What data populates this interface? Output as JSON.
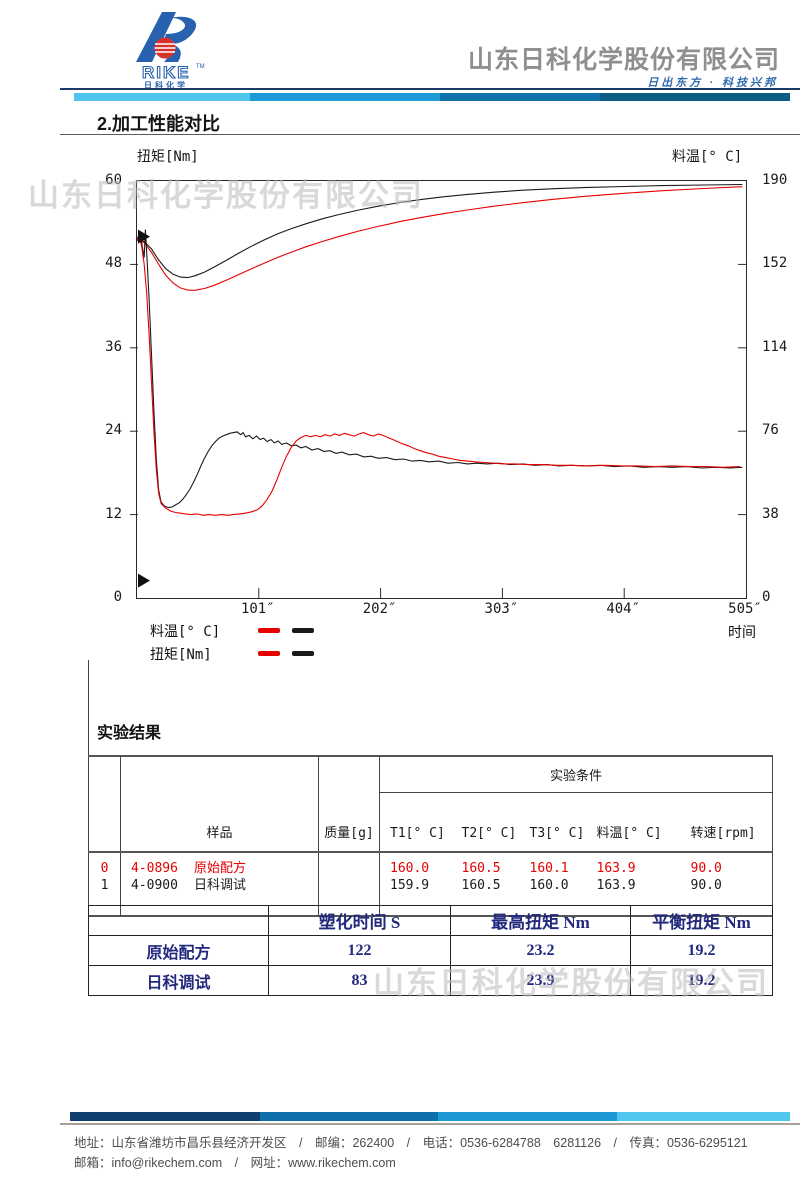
{
  "header": {
    "logo_brand": "RIKE",
    "logo_tm": "TM",
    "logo_brand_cn": "日 科 化 学",
    "company_name": "山东日科化学股份有限公司",
    "slogan": "日出东方 · 科技兴邦",
    "bar_colors": [
      "#4fc4ed",
      "#1e9ad6",
      "#0f72ab",
      "#0c5c85"
    ]
  },
  "section_title": "2.加工性能对比",
  "watermark_text": "山东日科化学股份有限公司",
  "chart_data": {
    "type": "line",
    "title": "",
    "x_axis": {
      "label": "时间",
      "min": 0,
      "max": 505,
      "ticks": [
        101,
        202,
        303,
        404,
        505
      ],
      "unit": "″"
    },
    "left_axis": {
      "label": "扭矩[Nm]",
      "min": 0,
      "max": 60,
      "ticks": [
        0,
        12,
        24,
        36,
        48,
        60
      ]
    },
    "right_axis": {
      "label": "料温[° C]",
      "min": 0,
      "max": 190,
      "ticks": [
        0,
        38,
        76,
        114,
        152,
        190
      ]
    },
    "grid": false,
    "legend_position": "bottom-left",
    "legend": [
      {
        "label": "料温[° C]",
        "colors": [
          "#e60000",
          "#1a1a1a"
        ]
      },
      {
        "label": "扭矩[Nm]",
        "colors": [
          "#e60000",
          "#1a1a1a"
        ]
      }
    ],
    "markers": [
      {
        "axis": "left",
        "value": 52
      },
      {
        "axis": "left",
        "value": 2.5
      }
    ],
    "series": [
      {
        "id": "temp-rike",
        "name": "料温 日科调试",
        "axis": "right",
        "color": "#1a1a1a",
        "points": [
          [
            0,
            163
          ],
          [
            6,
            162.5
          ],
          [
            12,
            159
          ],
          [
            18,
            154
          ],
          [
            24,
            150
          ],
          [
            30,
            147.5
          ],
          [
            36,
            146.2
          ],
          [
            42,
            146
          ],
          [
            48,
            146.8
          ],
          [
            56,
            148.5
          ],
          [
            64,
            150.8
          ],
          [
            74,
            153.8
          ],
          [
            84,
            157
          ],
          [
            94,
            160
          ],
          [
            104,
            162.8
          ],
          [
            116,
            165.8
          ],
          [
            128,
            168.3
          ],
          [
            140,
            170.5
          ],
          [
            154,
            172.8
          ],
          [
            168,
            174.8
          ],
          [
            184,
            176.8
          ],
          [
            200,
            178.5
          ],
          [
            218,
            180.2
          ],
          [
            236,
            181.6
          ],
          [
            254,
            182.8
          ],
          [
            274,
            183.9
          ],
          [
            296,
            184.9
          ],
          [
            320,
            185.8
          ],
          [
            346,
            186.5
          ],
          [
            374,
            187.1
          ],
          [
            404,
            187.5
          ],
          [
            436,
            187.9
          ],
          [
            470,
            188.2
          ],
          [
            502,
            188.4
          ]
        ]
      },
      {
        "id": "temp-original",
        "name": "料温 原始配方",
        "axis": "right",
        "color": "#e60000",
        "points": [
          [
            0,
            163
          ],
          [
            6,
            162
          ],
          [
            12,
            157.5
          ],
          [
            18,
            152
          ],
          [
            24,
            147
          ],
          [
            30,
            143.5
          ],
          [
            36,
            141.3
          ],
          [
            42,
            140.3
          ],
          [
            48,
            140.2
          ],
          [
            56,
            141
          ],
          [
            64,
            142.5
          ],
          [
            74,
            144.8
          ],
          [
            84,
            147.3
          ],
          [
            94,
            149.8
          ],
          [
            104,
            152.2
          ],
          [
            116,
            155
          ],
          [
            128,
            157.6
          ],
          [
            140,
            160
          ],
          [
            154,
            162.5
          ],
          [
            168,
            164.8
          ],
          [
            184,
            167.2
          ],
          [
            200,
            169.3
          ],
          [
            218,
            171.5
          ],
          [
            236,
            173.4
          ],
          [
            254,
            175.1
          ],
          [
            274,
            176.8
          ],
          [
            296,
            178.5
          ],
          [
            320,
            180.1
          ],
          [
            346,
            181.7
          ],
          [
            374,
            183.1
          ],
          [
            404,
            184.4
          ],
          [
            436,
            185.6
          ],
          [
            470,
            186.6
          ],
          [
            502,
            187.4
          ]
        ]
      },
      {
        "id": "torque-rike",
        "name": "扭矩 日科调试",
        "axis": "left",
        "color": "#1a1a1a",
        "points": [
          [
            0,
            51.5
          ],
          [
            2,
            52.5
          ],
          [
            4,
            51
          ],
          [
            6,
            49
          ],
          [
            7,
            53
          ],
          [
            8,
            50
          ],
          [
            10,
            43
          ],
          [
            12,
            35
          ],
          [
            14,
            27
          ],
          [
            16,
            20
          ],
          [
            18,
            15.5
          ],
          [
            20,
            13.8
          ],
          [
            23,
            13.2
          ],
          [
            26,
            13.0
          ],
          [
            29,
            13.1
          ],
          [
            32,
            13.4
          ],
          [
            35,
            13.7
          ],
          [
            38,
            14.2
          ],
          [
            41,
            14.9
          ],
          [
            44,
            15.7
          ],
          [
            47,
            16.7
          ],
          [
            50,
            17.8
          ],
          [
            53,
            19.0
          ],
          [
            56,
            20.1
          ],
          [
            59,
            21.1
          ],
          [
            62,
            21.9
          ],
          [
            65,
            22.5
          ],
          [
            68,
            23.0
          ],
          [
            71,
            23.3
          ],
          [
            74,
            23.5
          ],
          [
            77,
            23.7
          ],
          [
            80,
            23.8
          ],
          [
            83,
            23.9
          ],
          [
            86,
            23.5
          ],
          [
            88,
            23.8
          ],
          [
            90,
            23.2
          ],
          [
            93,
            23.4
          ],
          [
            96,
            22.9
          ],
          [
            99,
            23.3
          ],
          [
            102,
            22.8
          ],
          [
            105,
            23.0
          ],
          [
            108,
            22.5
          ],
          [
            111,
            22.8
          ],
          [
            114,
            22.3
          ],
          [
            117,
            22.6
          ],
          [
            120,
            22.1
          ],
          [
            124,
            22.3
          ],
          [
            128,
            21.9
          ],
          [
            132,
            22.0
          ],
          [
            136,
            21.6
          ],
          [
            140,
            21.8
          ],
          [
            145,
            21.3
          ],
          [
            150,
            21.5
          ],
          [
            155,
            21.1
          ],
          [
            160,
            21.2
          ],
          [
            165,
            20.8
          ],
          [
            170,
            21.0
          ],
          [
            176,
            20.6
          ],
          [
            182,
            20.7
          ],
          [
            188,
            20.3
          ],
          [
            194,
            20.4
          ],
          [
            200,
            20.1
          ],
          [
            207,
            20.2
          ],
          [
            214,
            19.9
          ],
          [
            221,
            20.0
          ],
          [
            228,
            19.7
          ],
          [
            235,
            19.8
          ],
          [
            242,
            19.6
          ],
          [
            250,
            19.7
          ],
          [
            258,
            19.4
          ],
          [
            266,
            19.5
          ],
          [
            274,
            19.3
          ],
          [
            282,
            19.4
          ],
          [
            290,
            19.3
          ],
          [
            300,
            19.4
          ],
          [
            310,
            19.2
          ],
          [
            320,
            19.3
          ],
          [
            330,
            19.1
          ],
          [
            340,
            19.2
          ],
          [
            350,
            19.0
          ],
          [
            360,
            19.1
          ],
          [
            372,
            19.0
          ],
          [
            384,
            19.1
          ],
          [
            396,
            18.9
          ],
          [
            408,
            19.0
          ],
          [
            420,
            18.8
          ],
          [
            432,
            18.9
          ],
          [
            444,
            18.8
          ],
          [
            456,
            18.9
          ],
          [
            468,
            18.7
          ],
          [
            480,
            18.8
          ],
          [
            492,
            18.7
          ],
          [
            502,
            18.8
          ]
        ]
      },
      {
        "id": "torque-original",
        "name": "扭矩 原始配方",
        "axis": "left",
        "color": "#e60000",
        "points": [
          [
            0,
            51.5
          ],
          [
            2,
            52
          ],
          [
            4,
            50.5
          ],
          [
            6,
            48
          ],
          [
            8,
            44
          ],
          [
            10,
            38
          ],
          [
            12,
            31
          ],
          [
            14,
            24
          ],
          [
            16,
            18.5
          ],
          [
            18,
            15
          ],
          [
            20,
            13.6
          ],
          [
            24,
            12.9
          ],
          [
            28,
            12.5
          ],
          [
            32,
            12.3
          ],
          [
            36,
            12.2
          ],
          [
            40,
            12.1
          ],
          [
            45,
            12.0
          ],
          [
            50,
            12.1
          ],
          [
            55,
            11.9
          ],
          [
            60,
            12.0
          ],
          [
            65,
            11.9
          ],
          [
            70,
            12.0
          ],
          [
            75,
            11.9
          ],
          [
            80,
            12.0
          ],
          [
            85,
            12.1
          ],
          [
            90,
            12.2
          ],
          [
            95,
            12.4
          ],
          [
            100,
            12.7
          ],
          [
            104,
            13.3
          ],
          [
            108,
            14.2
          ],
          [
            112,
            15.4
          ],
          [
            116,
            17.0
          ],
          [
            120,
            18.8
          ],
          [
            124,
            20.4
          ],
          [
            128,
            21.7
          ],
          [
            132,
            22.6
          ],
          [
            136,
            23.1
          ],
          [
            140,
            23.4
          ],
          [
            144,
            23.2
          ],
          [
            148,
            23.4
          ],
          [
            152,
            23.2
          ],
          [
            156,
            23.5
          ],
          [
            160,
            23.3
          ],
          [
            164,
            23.6
          ],
          [
            168,
            23.4
          ],
          [
            172,
            23.7
          ],
          [
            176,
            23.5
          ],
          [
            180,
            23.3
          ],
          [
            184,
            23.6
          ],
          [
            188,
            23.8
          ],
          [
            192,
            23.5
          ],
          [
            196,
            23.3
          ],
          [
            200,
            23.6
          ],
          [
            204,
            23.4
          ],
          [
            208,
            23.1
          ],
          [
            212,
            22.8
          ],
          [
            216,
            22.5
          ],
          [
            220,
            22.2
          ],
          [
            225,
            21.9
          ],
          [
            230,
            21.5
          ],
          [
            235,
            21.2
          ],
          [
            240,
            20.9
          ],
          [
            245,
            20.7
          ],
          [
            250,
            20.4
          ],
          [
            256,
            20.2
          ],
          [
            262,
            20.0
          ],
          [
            268,
            19.8
          ],
          [
            274,
            19.7
          ],
          [
            280,
            19.6
          ],
          [
            288,
            19.5
          ],
          [
            296,
            19.4
          ],
          [
            304,
            19.3
          ],
          [
            314,
            19.3
          ],
          [
            324,
            19.2
          ],
          [
            336,
            19.2
          ],
          [
            348,
            19.1
          ],
          [
            360,
            19.1
          ],
          [
            374,
            19.0
          ],
          [
            388,
            19.1
          ],
          [
            402,
            19.0
          ],
          [
            416,
            19.0
          ],
          [
            430,
            18.9
          ],
          [
            444,
            19.0
          ],
          [
            458,
            18.9
          ],
          [
            472,
            18.9
          ],
          [
            486,
            18.8
          ],
          [
            500,
            18.9
          ]
        ]
      }
    ]
  },
  "results": {
    "heading": "实验结果",
    "table1": {
      "condition_header": "实验条件",
      "col_sample": "样品",
      "col_mass": "质量[g]",
      "col_t1": "T1[° C]",
      "col_t2": "T2[° C]",
      "col_t3": "T3[° C]",
      "col_temp": "料温[° C]",
      "col_speed": "转速[rpm]",
      "rows": [
        {
          "idx": "0",
          "code": "4-0896",
          "name": "原始配方",
          "mass": "",
          "t1": "160.0",
          "t2": "160.5",
          "t3": "160.1",
          "temp": "163.9",
          "speed": "90.0",
          "color": "#e60000"
        },
        {
          "idx": "1",
          "code": "4-0900",
          "name": "日科调试",
          "mass": "",
          "t1": "159.9",
          "t2": "160.5",
          "t3": "160.0",
          "temp": "163.9",
          "speed": "90.0",
          "color": "#1a1a1a"
        }
      ]
    },
    "table2": {
      "text_color": "#232a7d",
      "col1": "塑化时间 S",
      "col2": "最高扭矩 Nm",
      "col3": "平衡扭矩 Nm",
      "rows": [
        {
          "label": "原始配方",
          "v1": "122",
          "v2": "23.2",
          "v3": "19.2"
        },
        {
          "label": "日科调试",
          "v1": "83",
          "v2": "23.9",
          "v3": "19.2"
        }
      ]
    }
  },
  "footer": {
    "bar_colors": [
      "#103f70",
      "#0f6fad",
      "#1f99d5",
      "#50c5ee"
    ],
    "line1": "地址：山东省潍坊市昌乐县经济开发区　/　邮编：262400　/　电话：0536-6284788　6281126　/　传真：0536-6295121",
    "line2": "邮箱：info@rikechem.com　/　网址：www.rikechem.com"
  }
}
